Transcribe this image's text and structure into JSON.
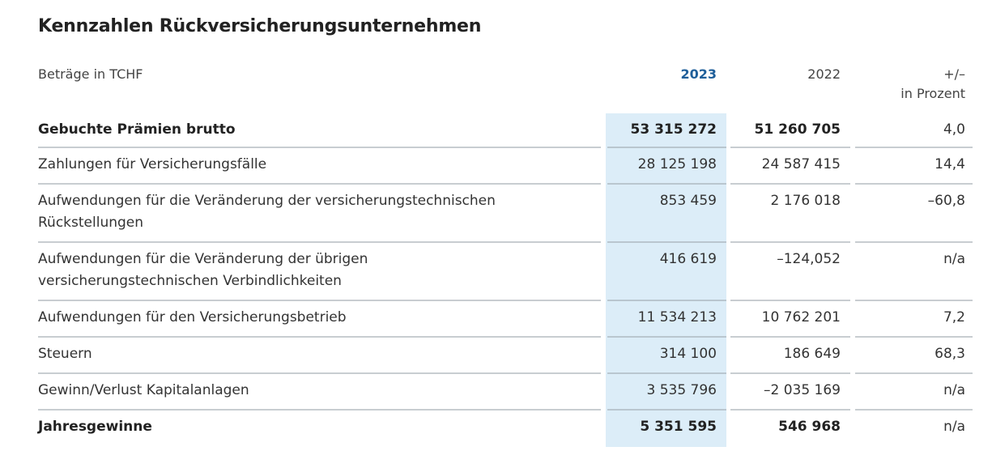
{
  "title": "Kennzahlen Rückversicherungsunternehmen",
  "header": {
    "label": "Beträge in TCHF",
    "col_2023": "2023",
    "col_2022": "2022",
    "col_change_line1": "+/–",
    "col_change_line2": "in Prozent"
  },
  "accent_color": "#1f5f9a",
  "highlight_color": "#dcedf8",
  "rows": [
    {
      "label": "Gebuchte Prämien brutto",
      "v2023": "53 315 272",
      "v2022": "51 260 705",
      "change": "4,0",
      "bold": true
    },
    {
      "label": "Zahlungen für Versicherungsfälle",
      "v2023": "28 125 198",
      "v2022": "24 587 415",
      "change": "14,4"
    },
    {
      "label": "Aufwendungen für die Veränderung der versicherungstechnischen Rückstellungen",
      "v2023": "853 459",
      "v2022": "2 176 018",
      "change": "–60,8"
    },
    {
      "label": "Aufwendungen für die Veränderung der übrigen versicherungstechnischen Verbindlichkeiten",
      "v2023": "416 619",
      "v2022": "–124,052",
      "change": "n/a"
    },
    {
      "label": "Aufwendungen für den Versicherungsbetrieb",
      "v2023": "11 534 213",
      "v2022": "10 762 201",
      "change": "7,2"
    },
    {
      "label": "Steuern",
      "v2023": "314 100",
      "v2022": "186 649",
      "change": "68,3"
    },
    {
      "label": "Gewinn/Verlust Kapitalanlagen",
      "v2023": "3 535 796",
      "v2022": "–2 035 169",
      "change": "n/a"
    },
    {
      "label": "Jahresgewinne",
      "v2023": "5 351 595",
      "v2022": "546 968",
      "change": "n/a",
      "bold": true
    }
  ]
}
